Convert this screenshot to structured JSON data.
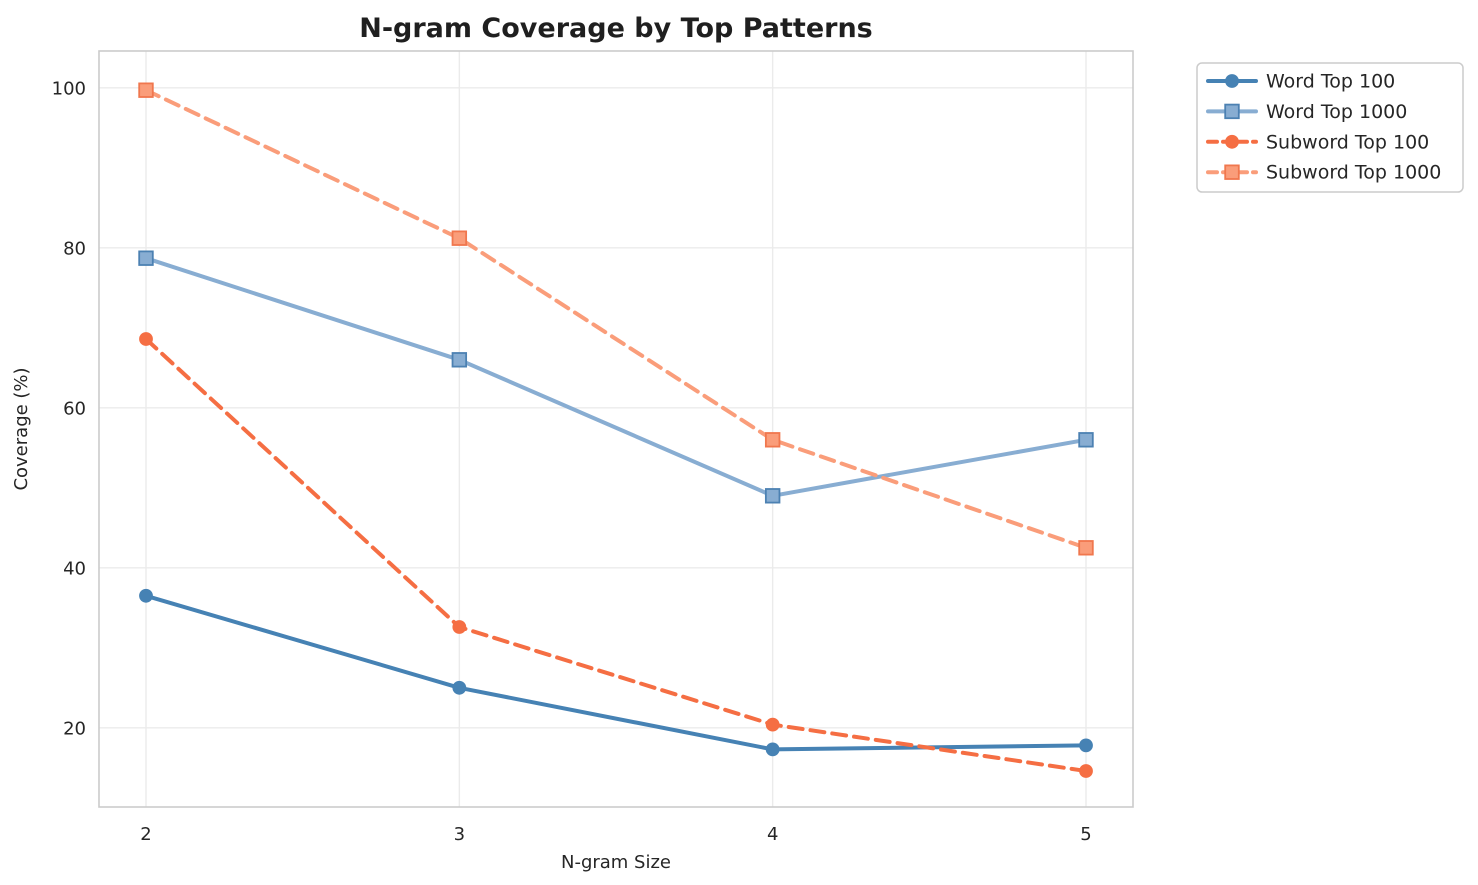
{
  "figure": {
    "background": "#ffffff",
    "text_color": "#262626",
    "title_color": "#1f1f1f",
    "grid_color": "#ebebeb",
    "spine_color": "#cbcbcb",
    "legend_border_color": "#cccccc",
    "legend_background": "#ffffff"
  },
  "chart_data": {
    "type": "line",
    "title": "N-gram Coverage by Top Patterns",
    "xlabel": "N-gram Size",
    "ylabel": "Coverage (%)",
    "x": [
      2,
      3,
      4,
      5
    ],
    "x_ticks": [
      2,
      3,
      4,
      5
    ],
    "y_ticks": [
      20,
      40,
      60,
      80,
      100
    ],
    "xlim": [
      1.85,
      5.15
    ],
    "ylim": [
      10.1,
      104.6
    ],
    "grid": true,
    "legend_position": "outside-top-right",
    "series": [
      {
        "name": "Word Top 100",
        "values": [
          36.5,
          25.0,
          17.3,
          17.8
        ],
        "color": "#4682B4",
        "marker_edge": "#4682B4",
        "line_style": "solid",
        "marker": "circle"
      },
      {
        "name": "Word Top 1000",
        "values": [
          78.7,
          66.0,
          49.0,
          56.0
        ],
        "color": "#88ADD2",
        "marker_edge": "#4C81B2",
        "line_style": "solid",
        "marker": "square"
      },
      {
        "name": "Subword Top 100",
        "values": [
          68.6,
          32.6,
          20.4,
          14.6
        ],
        "color": "#F56E43",
        "marker_edge": "#F56E43",
        "line_style": "dashed",
        "marker": "circle"
      },
      {
        "name": "Subword Top 1000",
        "values": [
          99.7,
          81.2,
          56.0,
          42.5
        ],
        "color": "#FA9D7A",
        "marker_edge": "#F0774E",
        "line_style": "dashed",
        "marker": "square"
      }
    ]
  }
}
